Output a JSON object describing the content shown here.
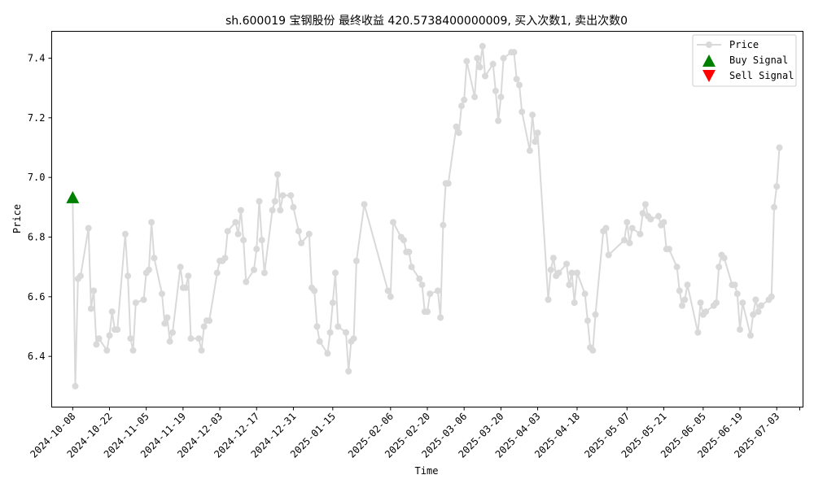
{
  "chart_data": {
    "type": "line",
    "title": "sh.600019 宝钢股份 最终收益 420.5738400000009, 买入次数1, 卖出次数0",
    "xlabel": "Time",
    "ylabel": "Price",
    "ylim": [
      6.23,
      7.49
    ],
    "yticks": [
      6.4,
      6.6,
      6.8,
      7.0,
      7.2,
      7.4
    ],
    "ytick_labels": [
      "6.4",
      "6.6",
      "6.8",
      "7.0",
      "7.2",
      "7.4"
    ],
    "x_start": "2024-09-30",
    "x_end": "2025-07-13",
    "xticks": [
      "2024-10-08",
      "2024-10-22",
      "2024-11-05",
      "2024-11-19",
      "2024-12-03",
      "2024-12-17",
      "2024-12-31",
      "2025-01-15",
      "2025-02-06",
      "2025-02-20",
      "2025-03-06",
      "2025-03-20",
      "2025-04-03",
      "2025-04-18",
      "2025-05-07",
      "2025-05-21",
      "2025-06-05",
      "2025-06-19",
      "2025-07-03"
    ],
    "grid": false,
    "legend_position": "top-right",
    "legend": [
      "Price",
      "Buy Signal",
      "Sell Signal"
    ],
    "series": [
      {
        "name": "Price",
        "color": "#d9d9d9",
        "x": [
          "2024-10-08",
          "2024-10-09",
          "2024-10-10",
          "2024-10-11",
          "2024-10-14",
          "2024-10-15",
          "2024-10-16",
          "2024-10-17",
          "2024-10-18",
          "2024-10-21",
          "2024-10-22",
          "2024-10-23",
          "2024-10-24",
          "2024-10-25",
          "2024-10-28",
          "2024-10-29",
          "2024-10-30",
          "2024-10-31",
          "2024-11-01",
          "2024-11-04",
          "2024-11-05",
          "2024-11-06",
          "2024-11-07",
          "2024-11-08",
          "2024-11-11",
          "2024-11-12",
          "2024-11-13",
          "2024-11-14",
          "2024-11-15",
          "2024-11-18",
          "2024-11-19",
          "2024-11-20",
          "2024-11-21",
          "2024-11-22",
          "2024-11-25",
          "2024-11-26",
          "2024-11-27",
          "2024-11-28",
          "2024-11-29",
          "2024-12-02",
          "2024-12-03",
          "2024-12-04",
          "2024-12-05",
          "2024-12-06",
          "2024-12-09",
          "2024-12-10",
          "2024-12-11",
          "2024-12-12",
          "2024-12-13",
          "2024-12-16",
          "2024-12-17",
          "2024-12-18",
          "2024-12-19",
          "2024-12-20",
          "2024-12-23",
          "2024-12-24",
          "2024-12-25",
          "2024-12-26",
          "2024-12-27",
          "2024-12-30",
          "2024-12-31",
          "2025-01-02",
          "2025-01-03",
          "2025-01-06",
          "2025-01-07",
          "2025-01-08",
          "2025-01-09",
          "2025-01-10",
          "2025-01-13",
          "2025-01-14",
          "2025-01-15",
          "2025-01-16",
          "2025-01-17",
          "2025-01-20",
          "2025-01-21",
          "2025-01-22",
          "2025-01-23",
          "2025-01-24",
          "2025-01-27",
          "2025-02-05",
          "2025-02-06",
          "2025-02-07",
          "2025-02-10",
          "2025-02-11",
          "2025-02-12",
          "2025-02-13",
          "2025-02-14",
          "2025-02-17",
          "2025-02-18",
          "2025-02-19",
          "2025-02-20",
          "2025-02-21",
          "2025-02-24",
          "2025-02-25",
          "2025-02-26",
          "2025-02-27",
          "2025-02-28",
          "2025-03-03",
          "2025-03-04",
          "2025-03-05",
          "2025-03-06",
          "2025-03-07",
          "2025-03-10",
          "2025-03-11",
          "2025-03-12",
          "2025-03-13",
          "2025-03-14",
          "2025-03-17",
          "2025-03-18",
          "2025-03-19",
          "2025-03-20",
          "2025-03-21",
          "2025-03-24",
          "2025-03-25",
          "2025-03-26",
          "2025-03-27",
          "2025-03-28",
          "2025-03-31",
          "2025-04-01",
          "2025-04-02",
          "2025-04-03",
          "2025-04-07",
          "2025-04-08",
          "2025-04-09",
          "2025-04-10",
          "2025-04-11",
          "2025-04-14",
          "2025-04-15",
          "2025-04-16",
          "2025-04-17",
          "2025-04-18",
          "2025-04-21",
          "2025-04-22",
          "2025-04-23",
          "2025-04-24",
          "2025-04-25",
          "2025-04-28",
          "2025-04-29",
          "2025-04-30",
          "2025-05-06",
          "2025-05-07",
          "2025-05-08",
          "2025-05-09",
          "2025-05-12",
          "2025-05-13",
          "2025-05-14",
          "2025-05-15",
          "2025-05-16",
          "2025-05-19",
          "2025-05-20",
          "2025-05-21",
          "2025-05-22",
          "2025-05-23",
          "2025-05-26",
          "2025-05-27",
          "2025-05-28",
          "2025-05-29",
          "2025-05-30",
          "2025-06-03",
          "2025-06-04",
          "2025-06-05",
          "2025-06-06",
          "2025-06-09",
          "2025-06-10",
          "2025-06-11",
          "2025-06-12",
          "2025-06-13",
          "2025-06-16",
          "2025-06-17",
          "2025-06-18",
          "2025-06-19",
          "2025-06-20",
          "2025-06-23",
          "2025-06-24",
          "2025-06-25",
          "2025-06-26",
          "2025-06-27",
          "2025-06-30",
          "2025-07-01",
          "2025-07-02",
          "2025-07-03",
          "2025-07-04"
        ],
        "y": [
          6.93,
          6.3,
          6.66,
          6.67,
          6.83,
          6.56,
          6.62,
          6.44,
          6.46,
          6.42,
          6.47,
          6.55,
          6.49,
          6.49,
          6.81,
          6.67,
          6.46,
          6.42,
          6.58,
          6.59,
          6.68,
          6.69,
          6.85,
          6.73,
          6.61,
          6.51,
          6.53,
          6.45,
          6.48,
          6.7,
          6.63,
          6.63,
          6.67,
          6.46,
          6.46,
          6.42,
          6.5,
          6.52,
          6.52,
          6.68,
          6.72,
          6.72,
          6.73,
          6.82,
          6.85,
          6.81,
          6.89,
          6.79,
          6.65,
          6.69,
          6.76,
          6.92,
          6.79,
          6.68,
          6.89,
          6.92,
          7.01,
          6.89,
          6.94,
          6.94,
          6.9,
          6.82,
          6.78,
          6.81,
          6.63,
          6.62,
          6.5,
          6.45,
          6.41,
          6.48,
          6.58,
          6.68,
          6.5,
          6.48,
          6.35,
          6.45,
          6.46,
          6.72,
          6.91,
          6.62,
          6.6,
          6.85,
          6.8,
          6.79,
          6.75,
          6.75,
          6.7,
          6.66,
          6.64,
          6.55,
          6.55,
          6.61,
          6.62,
          6.53,
          6.84,
          6.98,
          6.98,
          7.17,
          7.15,
          7.24,
          7.26,
          7.39,
          7.27,
          7.4,
          7.37,
          7.44,
          7.34,
          7.38,
          7.29,
          7.19,
          7.27,
          7.4,
          7.42,
          7.42,
          7.33,
          7.31,
          7.22,
          7.09,
          7.21,
          7.12,
          7.15,
          6.59,
          6.69,
          6.73,
          6.67,
          6.68,
          6.71,
          6.64,
          6.68,
          6.58,
          6.68,
          6.61,
          6.52,
          6.43,
          6.42,
          6.54,
          6.82,
          6.83,
          6.74,
          6.79,
          6.85,
          6.78,
          6.83,
          6.81,
          6.88,
          6.91,
          6.87,
          6.86,
          6.87,
          6.84,
          6.85,
          6.76,
          6.76,
          6.7,
          6.62,
          6.57,
          6.59,
          6.64,
          6.48,
          6.58,
          6.54,
          6.55,
          6.57,
          6.58,
          6.7,
          6.74,
          6.73,
          6.64,
          6.64,
          6.61,
          6.49,
          6.58,
          6.47,
          6.54,
          6.59,
          6.55,
          6.57,
          6.59,
          6.6,
          6.9,
          6.97,
          7.1
        ]
      },
      {
        "name": "Buy Signal",
        "color": "#008000",
        "x": [
          "2024-10-08"
        ],
        "y": [
          6.93
        ]
      },
      {
        "name": "Sell Signal",
        "color": "#ff0000",
        "x": [],
        "y": []
      }
    ]
  }
}
